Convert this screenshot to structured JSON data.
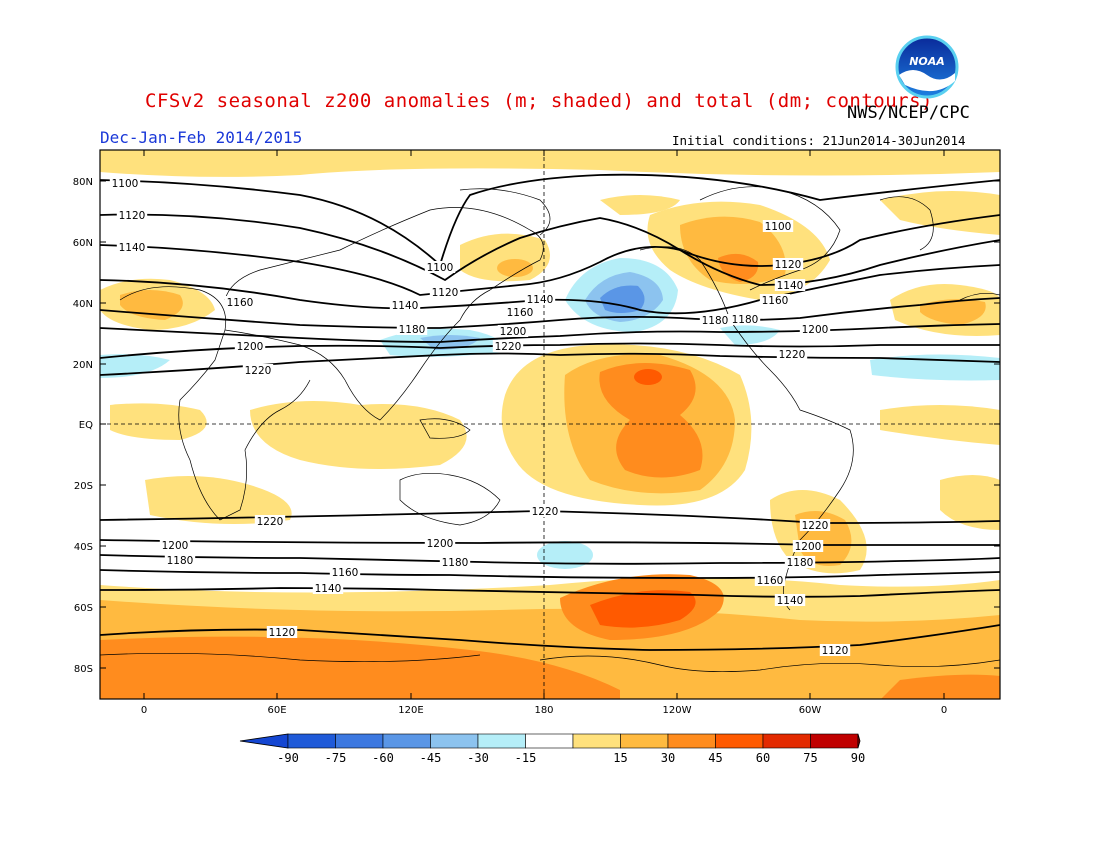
{
  "header": {
    "title": "CFSv2 seasonal z200 anomalies (m; shaded) and total (dm; contours)",
    "agency": "NWS/NCEP/CPC",
    "period": "Dec-Jan-Feb 2014/2015",
    "initial_conditions": "Initial conditions: 21Jun2014-30Jun2014",
    "logo_text": "NOAA"
  },
  "map": {
    "projection": "cylindrical equidistant",
    "lon_range": [
      -20,
      340
    ],
    "lat_range": [
      -90,
      90
    ],
    "lat_ticks": [
      "80N",
      "60N",
      "40N",
      "20N",
      "EQ",
      "20S",
      "40S",
      "60S",
      "80S"
    ],
    "lon_ticks": [
      "0",
      "60E",
      "120E",
      "180",
      "120W",
      "60W",
      "0"
    ],
    "reference_lines": [
      "equator",
      "180 meridian"
    ],
    "contour_labels": [
      "1100",
      "1120",
      "1140",
      "1100",
      "1120",
      "1140",
      "1160",
      "1180",
      "1200",
      "1220",
      "1140",
      "1160",
      "1180",
      "1200",
      "1220",
      "1100",
      "1120",
      "1140",
      "1160",
      "1180",
      "1200",
      "1220",
      "1220",
      "1220",
      "1220",
      "1200",
      "1180",
      "1200",
      "1180",
      "1200",
      "1180",
      "1160",
      "1140",
      "1140",
      "1160",
      "1120",
      "1120"
    ]
  },
  "colorbar": {
    "labels": [
      "-90",
      "-75",
      "-60",
      "-45",
      "-30",
      "-15",
      "15",
      "30",
      "45",
      "60",
      "75",
      "90"
    ],
    "colors": [
      "#1f5ad8",
      "#3c78e0",
      "#5a96e6",
      "#8cc3ef",
      "#b5eef8",
      "#ffffff",
      "#ffe17d",
      "#ffba40",
      "#ff8c1e",
      "#ff5a00",
      "#e32a00",
      "#c00000"
    ]
  }
}
